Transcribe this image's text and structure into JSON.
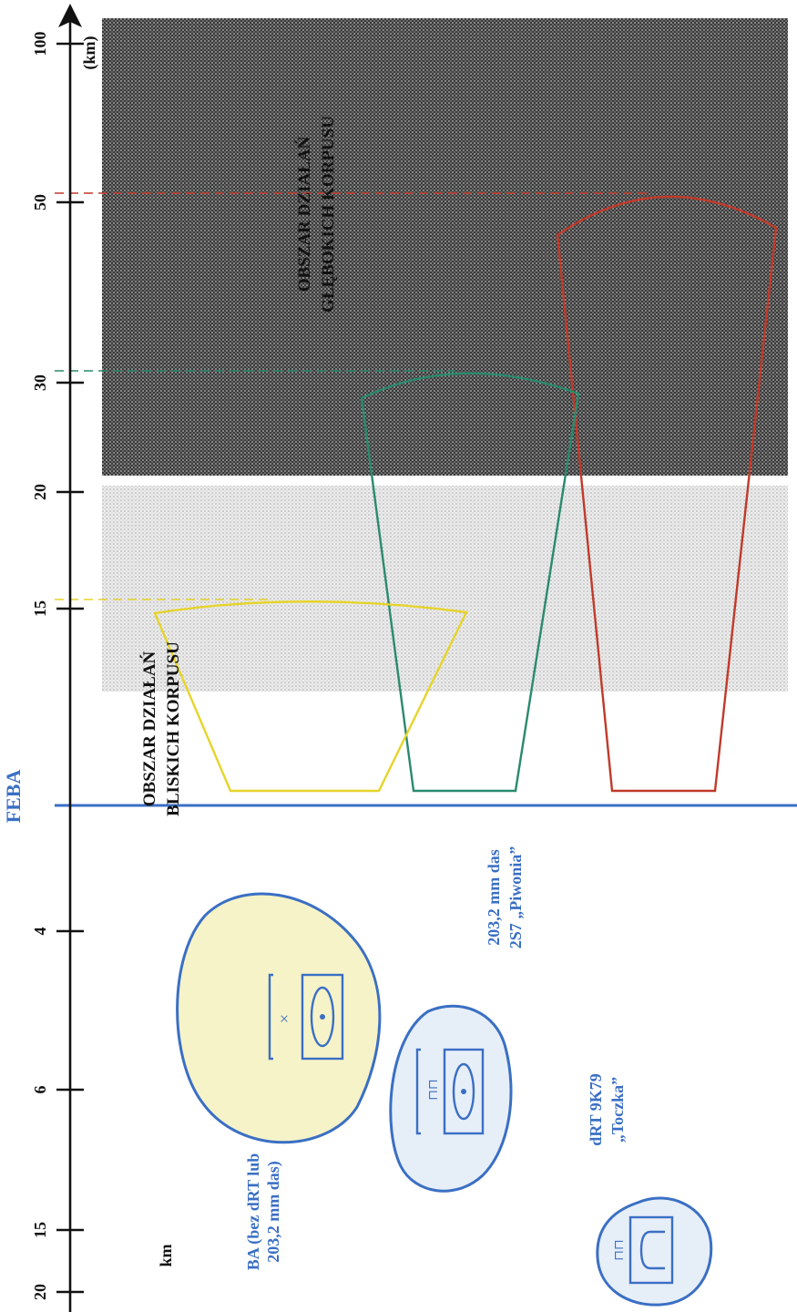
{
  "axis": {
    "deep_ticks": [
      "100",
      "50",
      "30",
      "20",
      "15"
    ],
    "deep_unit": "(km)",
    "rear_ticks": [
      "4",
      "6",
      "15",
      "20"
    ],
    "rear_unit": "km"
  },
  "feba_label": "FEBA",
  "zones": {
    "deep": {
      "line1": "OBSZAR DZIAŁAŃ",
      "line2": "GŁĘBOKICH KORPUSU"
    },
    "close": {
      "line1": "OBSZAR DZIAŁAŃ",
      "line2": "BLISKICH KORPUSU"
    }
  },
  "weapons": {
    "ba": {
      "line1": "BA (bez dRT lub",
      "line2": "203,2 mm das)",
      "range_km": 15
    },
    "piwonia": {
      "line1": "203,2 mm das",
      "line2": "2S7 „Piwonia”",
      "range_km": 30
    },
    "toczka": {
      "line1": "dRT 9K79",
      "line2": "„Toczka”",
      "range_km": 50
    }
  },
  "unit_symbols": {
    "ba_mark": "×",
    "piwonia_mark": "⊓⊓",
    "toczka_mark": "⊓⊓"
  },
  "colors": {
    "axis": "#111111",
    "feba": "#3a6fc4",
    "range_15": "#e6d42a",
    "range_30": "#2a8a6e",
    "range_50": "#c03a2a",
    "deep_zone": "#2b2b2b",
    "close_zone": "#d6d6d6",
    "blob_fill_ba": "#f6f3c8",
    "blob_fill_other": "#e6eef8",
    "blob_stroke": "#3a6fc4"
  }
}
